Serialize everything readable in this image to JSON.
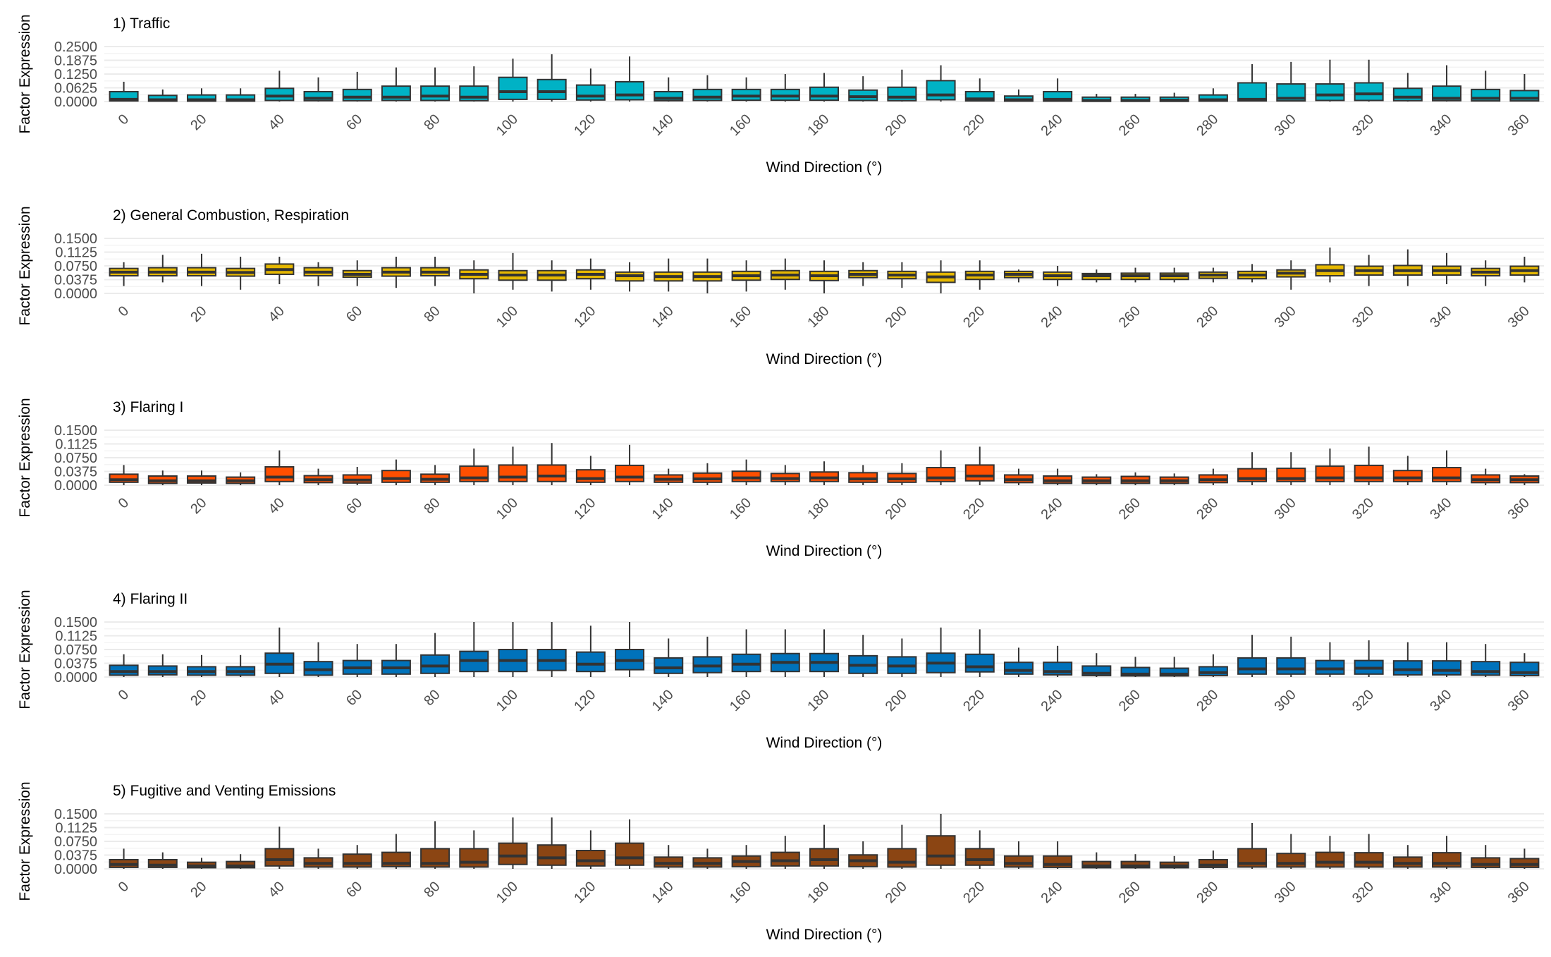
{
  "chart_data": [
    {
      "type": "box",
      "title": "1) Traffic",
      "xlabel": "Wind Direction (°)",
      "ylabel": "Factor Expression",
      "ylim": [
        0,
        0.25
      ],
      "yticks": [
        "0.0000",
        "0.0625",
        "0.1250",
        "0.1875",
        "0.2500"
      ],
      "xticks": [
        "0",
        "20",
        "40",
        "60",
        "80",
        "100",
        "120",
        "140",
        "160",
        "180",
        "200",
        "220",
        "240",
        "260",
        "280",
        "300",
        "320",
        "340",
        "360"
      ],
      "fill": "#00b2c5",
      "x": [
        0,
        10,
        20,
        30,
        40,
        50,
        60,
        70,
        80,
        90,
        100,
        110,
        120,
        130,
        140,
        150,
        160,
        170,
        180,
        190,
        200,
        210,
        220,
        230,
        240,
        250,
        260,
        270,
        280,
        290,
        300,
        310,
        320,
        330,
        340,
        350,
        360
      ],
      "q1": [
        0.003,
        0.002,
        0.002,
        0.002,
        0.005,
        0.004,
        0.004,
        0.005,
        0.005,
        0.004,
        0.01,
        0.01,
        0.007,
        0.008,
        0.004,
        0.005,
        0.006,
        0.006,
        0.006,
        0.005,
        0.004,
        0.008,
        0.003,
        0.002,
        0.002,
        0.001,
        0.001,
        0.001,
        0.002,
        0.003,
        0.003,
        0.005,
        0.005,
        0.004,
        0.004,
        0.003,
        0.003
      ],
      "median": [
        0.01,
        0.008,
        0.008,
        0.008,
        0.025,
        0.015,
        0.02,
        0.02,
        0.025,
        0.02,
        0.045,
        0.045,
        0.025,
        0.03,
        0.015,
        0.02,
        0.025,
        0.025,
        0.025,
        0.022,
        0.02,
        0.03,
        0.012,
        0.008,
        0.01,
        0.005,
        0.005,
        0.006,
        0.008,
        0.01,
        0.015,
        0.03,
        0.035,
        0.02,
        0.015,
        0.015,
        0.015
      ],
      "q3": [
        0.045,
        0.028,
        0.03,
        0.03,
        0.06,
        0.045,
        0.055,
        0.07,
        0.07,
        0.07,
        0.11,
        0.1,
        0.075,
        0.09,
        0.045,
        0.055,
        0.055,
        0.055,
        0.065,
        0.052,
        0.065,
        0.095,
        0.045,
        0.025,
        0.045,
        0.02,
        0.02,
        0.02,
        0.03,
        0.085,
        0.08,
        0.08,
        0.085,
        0.06,
        0.07,
        0.055,
        0.05
      ],
      "whislo": [
        0,
        0,
        0,
        0,
        0,
        0,
        0,
        0,
        0,
        0,
        0,
        0,
        0,
        0,
        0,
        0,
        0,
        0,
        0,
        0,
        0,
        0,
        0,
        0,
        0,
        0,
        0,
        0,
        0,
        0,
        0,
        0,
        0,
        0,
        0,
        0,
        0
      ],
      "whishi": [
        0.09,
        0.055,
        0.06,
        0.06,
        0.14,
        0.11,
        0.135,
        0.155,
        0.155,
        0.16,
        0.195,
        0.215,
        0.15,
        0.205,
        0.11,
        0.12,
        0.11,
        0.125,
        0.13,
        0.115,
        0.145,
        0.165,
        0.105,
        0.055,
        0.105,
        0.035,
        0.035,
        0.04,
        0.06,
        0.17,
        0.18,
        0.19,
        0.19,
        0.13,
        0.165,
        0.14,
        0.125
      ]
    },
    {
      "type": "box",
      "title": "2) General Combustion, Respiration",
      "xlabel": "Wind Direction (°)",
      "ylabel": "Factor Expression",
      "ylim": [
        0,
        0.15
      ],
      "yticks": [
        "0.0000",
        "0.0375",
        "0.0750",
        "0.1125",
        "0.1500"
      ],
      "xticks": [
        "0",
        "20",
        "40",
        "60",
        "80",
        "100",
        "120",
        "140",
        "160",
        "180",
        "200",
        "220",
        "240",
        "260",
        "280",
        "300",
        "320",
        "340",
        "360"
      ],
      "fill": "#e6b800",
      "x": [
        0,
        10,
        20,
        30,
        40,
        50,
        60,
        70,
        80,
        90,
        100,
        110,
        120,
        130,
        140,
        150,
        160,
        170,
        180,
        190,
        200,
        210,
        220,
        230,
        240,
        250,
        260,
        270,
        280,
        290,
        300,
        310,
        320,
        330,
        340,
        350,
        360
      ],
      "q1": [
        0.048,
        0.048,
        0.048,
        0.047,
        0.052,
        0.048,
        0.044,
        0.047,
        0.048,
        0.04,
        0.036,
        0.036,
        0.04,
        0.034,
        0.034,
        0.034,
        0.036,
        0.038,
        0.035,
        0.043,
        0.04,
        0.03,
        0.038,
        0.043,
        0.038,
        0.038,
        0.038,
        0.038,
        0.041,
        0.04,
        0.045,
        0.048,
        0.05,
        0.05,
        0.05,
        0.048,
        0.05
      ],
      "median": [
        0.058,
        0.058,
        0.058,
        0.057,
        0.065,
        0.058,
        0.052,
        0.058,
        0.058,
        0.052,
        0.05,
        0.05,
        0.052,
        0.048,
        0.046,
        0.046,
        0.048,
        0.05,
        0.048,
        0.052,
        0.05,
        0.045,
        0.05,
        0.052,
        0.048,
        0.048,
        0.048,
        0.048,
        0.05,
        0.05,
        0.055,
        0.062,
        0.062,
        0.062,
        0.062,
        0.058,
        0.062
      ],
      "q3": [
        0.068,
        0.07,
        0.07,
        0.068,
        0.08,
        0.07,
        0.062,
        0.07,
        0.07,
        0.064,
        0.062,
        0.062,
        0.064,
        0.058,
        0.058,
        0.058,
        0.06,
        0.062,
        0.06,
        0.062,
        0.06,
        0.058,
        0.06,
        0.06,
        0.058,
        0.054,
        0.055,
        0.055,
        0.058,
        0.06,
        0.064,
        0.078,
        0.074,
        0.076,
        0.074,
        0.068,
        0.074
      ],
      "whislo": [
        0.02,
        0.03,
        0.02,
        0.01,
        0.025,
        0.02,
        0.02,
        0.015,
        0.02,
        0.0,
        0.01,
        0.005,
        0.01,
        0.005,
        0.005,
        0.0,
        0.005,
        0.01,
        0.0,
        0.02,
        0.015,
        0.0,
        0.01,
        0.03,
        0.02,
        0.03,
        0.03,
        0.03,
        0.03,
        0.03,
        0.01,
        0.03,
        0.02,
        0.02,
        0.025,
        0.02,
        0.03
      ],
      "whishi": [
        0.085,
        0.105,
        0.108,
        0.1,
        0.1,
        0.085,
        0.09,
        0.1,
        0.1,
        0.09,
        0.11,
        0.09,
        0.095,
        0.085,
        0.095,
        0.095,
        0.09,
        0.095,
        0.09,
        0.085,
        0.085,
        0.09,
        0.09,
        0.065,
        0.075,
        0.065,
        0.07,
        0.07,
        0.07,
        0.08,
        0.09,
        0.125,
        0.105,
        0.12,
        0.11,
        0.09,
        0.1
      ]
    },
    {
      "type": "box",
      "title": "3) Flaring I",
      "xlabel": "Wind Direction (°)",
      "ylabel": "Factor Expression",
      "ylim": [
        0,
        0.15
      ],
      "yticks": [
        "0.0000",
        "0.0375",
        "0.0750",
        "0.1125",
        "0.1500"
      ],
      "xticks": [
        "0",
        "20",
        "40",
        "60",
        "80",
        "100",
        "120",
        "140",
        "160",
        "180",
        "200",
        "220",
        "240",
        "260",
        "280",
        "300",
        "320",
        "340",
        "360"
      ],
      "fill": "#ff4f00",
      "x": [
        0,
        10,
        20,
        30,
        40,
        50,
        60,
        70,
        80,
        90,
        100,
        110,
        120,
        130,
        140,
        150,
        160,
        170,
        180,
        190,
        200,
        210,
        220,
        230,
        240,
        250,
        260,
        270,
        280,
        290,
        300,
        310,
        320,
        330,
        340,
        350,
        360
      ],
      "q1": [
        0.008,
        0.005,
        0.006,
        0.005,
        0.01,
        0.007,
        0.006,
        0.008,
        0.008,
        0.01,
        0.01,
        0.01,
        0.008,
        0.01,
        0.008,
        0.008,
        0.01,
        0.01,
        0.01,
        0.008,
        0.008,
        0.01,
        0.012,
        0.007,
        0.005,
        0.005,
        0.005,
        0.005,
        0.007,
        0.01,
        0.01,
        0.01,
        0.01,
        0.01,
        0.01,
        0.007,
        0.007
      ],
      "median": [
        0.015,
        0.012,
        0.012,
        0.012,
        0.022,
        0.015,
        0.014,
        0.018,
        0.016,
        0.02,
        0.022,
        0.025,
        0.018,
        0.022,
        0.016,
        0.017,
        0.02,
        0.018,
        0.02,
        0.017,
        0.017,
        0.02,
        0.025,
        0.015,
        0.012,
        0.012,
        0.012,
        0.012,
        0.015,
        0.018,
        0.018,
        0.02,
        0.02,
        0.02,
        0.02,
        0.015,
        0.015
      ],
      "q3": [
        0.03,
        0.025,
        0.025,
        0.022,
        0.05,
        0.026,
        0.028,
        0.04,
        0.03,
        0.052,
        0.055,
        0.055,
        0.042,
        0.054,
        0.028,
        0.033,
        0.038,
        0.032,
        0.036,
        0.034,
        0.032,
        0.048,
        0.055,
        0.028,
        0.025,
        0.022,
        0.024,
        0.022,
        0.028,
        0.045,
        0.046,
        0.052,
        0.054,
        0.04,
        0.048,
        0.028,
        0.025
      ],
      "whislo": [
        0,
        0,
        0,
        0,
        0,
        0,
        0,
        0,
        0,
        0,
        0,
        0,
        0,
        0,
        0,
        0,
        0,
        0,
        0,
        0,
        0,
        0,
        0,
        0,
        0,
        0,
        0,
        0,
        0,
        0,
        0,
        0,
        0,
        0,
        0,
        0,
        0
      ],
      "whishi": [
        0.055,
        0.04,
        0.04,
        0.035,
        0.095,
        0.045,
        0.05,
        0.07,
        0.055,
        0.1,
        0.105,
        0.115,
        0.08,
        0.11,
        0.045,
        0.06,
        0.07,
        0.055,
        0.065,
        0.055,
        0.06,
        0.095,
        0.105,
        0.045,
        0.045,
        0.03,
        0.035,
        0.032,
        0.045,
        0.09,
        0.09,
        0.1,
        0.105,
        0.08,
        0.095,
        0.045,
        0.03
      ]
    },
    {
      "type": "box",
      "title": "4) Flaring II",
      "xlabel": "Wind Direction (°)",
      "ylabel": "Factor Expression",
      "ylim": [
        0,
        0.15
      ],
      "yticks": [
        "0.0000",
        "0.0375",
        "0.0750",
        "0.1125",
        "0.1500"
      ],
      "xticks": [
        "0",
        "20",
        "40",
        "60",
        "80",
        "100",
        "120",
        "140",
        "160",
        "180",
        "200",
        "220",
        "240",
        "260",
        "280",
        "300",
        "320",
        "340",
        "360"
      ],
      "fill": "#0072bb",
      "x": [
        0,
        10,
        20,
        30,
        40,
        50,
        60,
        70,
        80,
        90,
        100,
        110,
        120,
        130,
        140,
        150,
        160,
        170,
        180,
        190,
        200,
        210,
        220,
        230,
        240,
        250,
        260,
        270,
        280,
        290,
        300,
        310,
        320,
        330,
        340,
        350,
        360
      ],
      "q1": [
        0.005,
        0.006,
        0.005,
        0.005,
        0.01,
        0.005,
        0.008,
        0.008,
        0.01,
        0.015,
        0.015,
        0.018,
        0.015,
        0.02,
        0.01,
        0.012,
        0.015,
        0.015,
        0.015,
        0.01,
        0.01,
        0.012,
        0.014,
        0.008,
        0.006,
        0.004,
        0.003,
        0.003,
        0.004,
        0.008,
        0.008,
        0.008,
        0.008,
        0.006,
        0.006,
        0.005,
        0.004
      ],
      "median": [
        0.015,
        0.015,
        0.015,
        0.015,
        0.035,
        0.02,
        0.025,
        0.025,
        0.03,
        0.045,
        0.045,
        0.045,
        0.035,
        0.045,
        0.025,
        0.03,
        0.035,
        0.04,
        0.04,
        0.032,
        0.03,
        0.038,
        0.028,
        0.018,
        0.015,
        0.01,
        0.008,
        0.008,
        0.012,
        0.022,
        0.022,
        0.022,
        0.024,
        0.02,
        0.018,
        0.015,
        0.012
      ],
      "q3": [
        0.032,
        0.03,
        0.028,
        0.028,
        0.065,
        0.042,
        0.045,
        0.045,
        0.06,
        0.07,
        0.075,
        0.075,
        0.068,
        0.075,
        0.052,
        0.055,
        0.062,
        0.064,
        0.064,
        0.058,
        0.055,
        0.065,
        0.062,
        0.04,
        0.04,
        0.03,
        0.026,
        0.024,
        0.028,
        0.052,
        0.052,
        0.045,
        0.045,
        0.044,
        0.044,
        0.042,
        0.04
      ],
      "whislo": [
        0,
        0,
        0,
        0,
        0,
        0,
        0,
        0,
        0,
        0,
        0,
        0,
        0,
        0,
        0,
        0,
        0,
        0,
        0,
        0,
        0,
        0,
        0,
        0,
        0,
        0,
        0,
        0,
        0,
        0,
        0,
        0,
        0,
        0,
        0,
        0,
        0
      ],
      "whishi": [
        0.062,
        0.062,
        0.06,
        0.06,
        0.135,
        0.095,
        0.09,
        0.09,
        0.12,
        0.15,
        0.15,
        0.15,
        0.14,
        0.15,
        0.105,
        0.11,
        0.13,
        0.13,
        0.13,
        0.115,
        0.105,
        0.135,
        0.13,
        0.08,
        0.085,
        0.065,
        0.055,
        0.055,
        0.062,
        0.115,
        0.11,
        0.095,
        0.1,
        0.095,
        0.095,
        0.09,
        0.065
      ]
    },
    {
      "type": "box",
      "title": "5) Fugitive and Venting Emissions",
      "xlabel": "Wind Direction (°)",
      "ylabel": "Factor Expression",
      "ylim": [
        0,
        0.15
      ],
      "yticks": [
        "0.0000",
        "0.0375",
        "0.0750",
        "0.1125",
        "0.1500"
      ],
      "xticks": [
        "0",
        "20",
        "40",
        "60",
        "80",
        "100",
        "120",
        "140",
        "160",
        "180",
        "200",
        "220",
        "240",
        "260",
        "280",
        "300",
        "320",
        "340",
        "360"
      ],
      "fill": "#8b4513",
      "x": [
        0,
        10,
        20,
        30,
        40,
        50,
        60,
        70,
        80,
        90,
        100,
        110,
        120,
        130,
        140,
        150,
        160,
        170,
        180,
        190,
        200,
        210,
        220,
        230,
        240,
        250,
        260,
        270,
        280,
        290,
        300,
        310,
        320,
        330,
        340,
        350,
        360
      ],
      "q1": [
        0.004,
        0.004,
        0.003,
        0.003,
        0.008,
        0.005,
        0.005,
        0.006,
        0.005,
        0.005,
        0.012,
        0.01,
        0.008,
        0.01,
        0.005,
        0.005,
        0.006,
        0.008,
        0.008,
        0.006,
        0.005,
        0.01,
        0.01,
        0.005,
        0.004,
        0.003,
        0.003,
        0.003,
        0.004,
        0.005,
        0.005,
        0.005,
        0.005,
        0.005,
        0.005,
        0.004,
        0.004
      ],
      "median": [
        0.012,
        0.01,
        0.008,
        0.008,
        0.025,
        0.015,
        0.015,
        0.015,
        0.015,
        0.018,
        0.035,
        0.03,
        0.022,
        0.03,
        0.015,
        0.015,
        0.02,
        0.022,
        0.025,
        0.022,
        0.018,
        0.035,
        0.025,
        0.015,
        0.012,
        0.008,
        0.008,
        0.008,
        0.01,
        0.015,
        0.015,
        0.018,
        0.018,
        0.015,
        0.015,
        0.012,
        0.012
      ],
      "q3": [
        0.025,
        0.025,
        0.018,
        0.02,
        0.055,
        0.03,
        0.04,
        0.045,
        0.055,
        0.055,
        0.07,
        0.065,
        0.05,
        0.07,
        0.032,
        0.03,
        0.035,
        0.045,
        0.055,
        0.038,
        0.055,
        0.09,
        0.055,
        0.035,
        0.035,
        0.02,
        0.02,
        0.018,
        0.025,
        0.055,
        0.042,
        0.045,
        0.044,
        0.032,
        0.044,
        0.03,
        0.028
      ],
      "whislo": [
        0,
        0,
        0,
        0,
        0,
        0,
        0,
        0,
        0,
        0,
        0,
        0,
        0,
        0,
        0,
        0,
        0,
        0,
        0,
        0,
        0,
        0,
        0,
        0,
        0,
        0,
        0,
        0,
        0,
        0,
        0,
        0,
        0,
        0,
        0,
        0,
        0
      ],
      "whishi": [
        0.055,
        0.045,
        0.03,
        0.04,
        0.115,
        0.055,
        0.065,
        0.095,
        0.13,
        0.105,
        0.14,
        0.14,
        0.105,
        0.135,
        0.065,
        0.055,
        0.065,
        0.09,
        0.12,
        0.075,
        0.12,
        0.15,
        0.105,
        0.075,
        0.075,
        0.045,
        0.04,
        0.035,
        0.05,
        0.125,
        0.095,
        0.09,
        0.095,
        0.065,
        0.09,
        0.065,
        0.055
      ]
    }
  ]
}
